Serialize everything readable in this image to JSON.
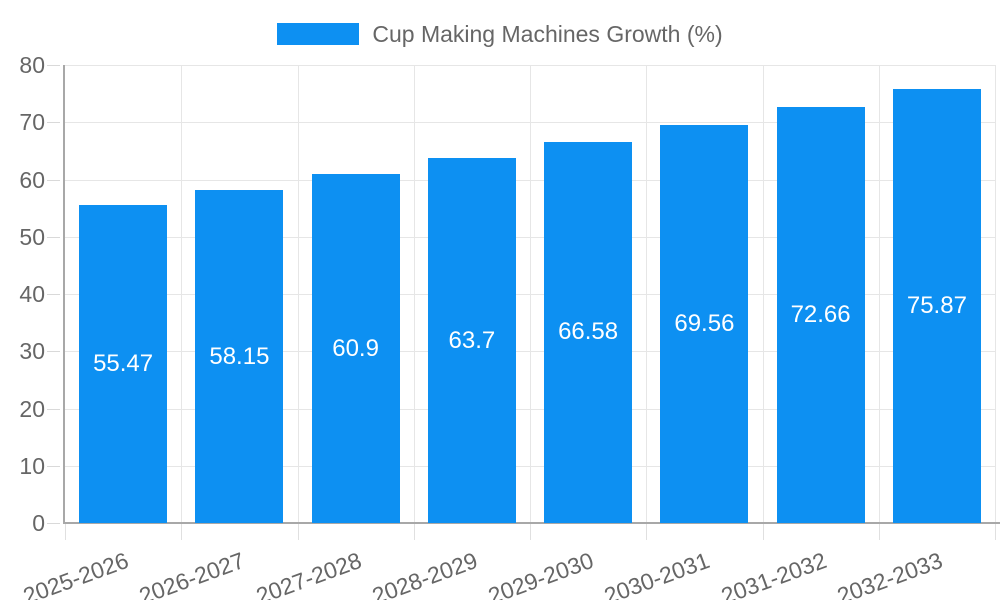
{
  "chart_data": {
    "type": "bar",
    "title": "Cup Making Machines Growth (%)",
    "categories": [
      "2025-2026",
      "2026-2027",
      "2027-2028",
      "2028-2029",
      "2029-2030",
      "2030-2031",
      "2031-2032",
      "2032-2033"
    ],
    "values": [
      55.47,
      58.15,
      60.9,
      63.7,
      66.58,
      69.56,
      72.66,
      75.87
    ],
    "value_labels": [
      "55.47",
      "58.15",
      "60.9",
      "63.7",
      "66.58",
      "69.56",
      "72.66",
      "75.87"
    ],
    "xlabel": "",
    "ylabel": "",
    "ylim": [
      0,
      80
    ],
    "yticks": [
      0,
      10,
      20,
      30,
      40,
      50,
      60,
      70,
      80
    ],
    "grid": true,
    "legend_position": "top-center",
    "colors": {
      "bar": "#0d90f2",
      "value_label": "#ffffff",
      "axis_text": "#666666",
      "gridline": "#e6e6e6",
      "axis_line": "#a8a8a8",
      "background": "#ffffff"
    }
  }
}
